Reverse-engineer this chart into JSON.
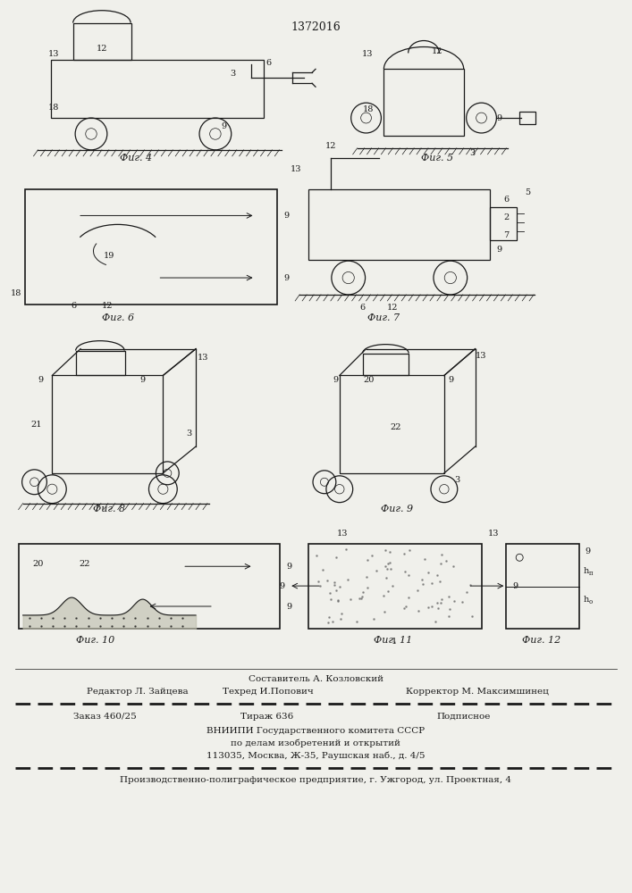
{
  "patent_number": "1372016",
  "background_color": "#f0f0eb",
  "line_color": "#1a1a1a",
  "footer_line1": "Составитель А. Козловский",
  "footer_line2a": "Редактор Л. Зайцева",
  "footer_line2b": "Техред И.Попович",
  "footer_line2c": "Корректор М. Максимшинец",
  "footer_line3a": "Заказ 460/25",
  "footer_line3b": "Тираж 636",
  "footer_line3c": "Подписное",
  "footer_line4": "ВНИИПИ Государственного комитета СССР",
  "footer_line5": "по делам изобретений и открытий",
  "footer_line6": "113035, Москва, Ж-35, Раушская наб., д. 4/5",
  "footer_line7": "Производственно-полиграфическое предприятие, г. Ужгород, ул. Проектная, 4"
}
